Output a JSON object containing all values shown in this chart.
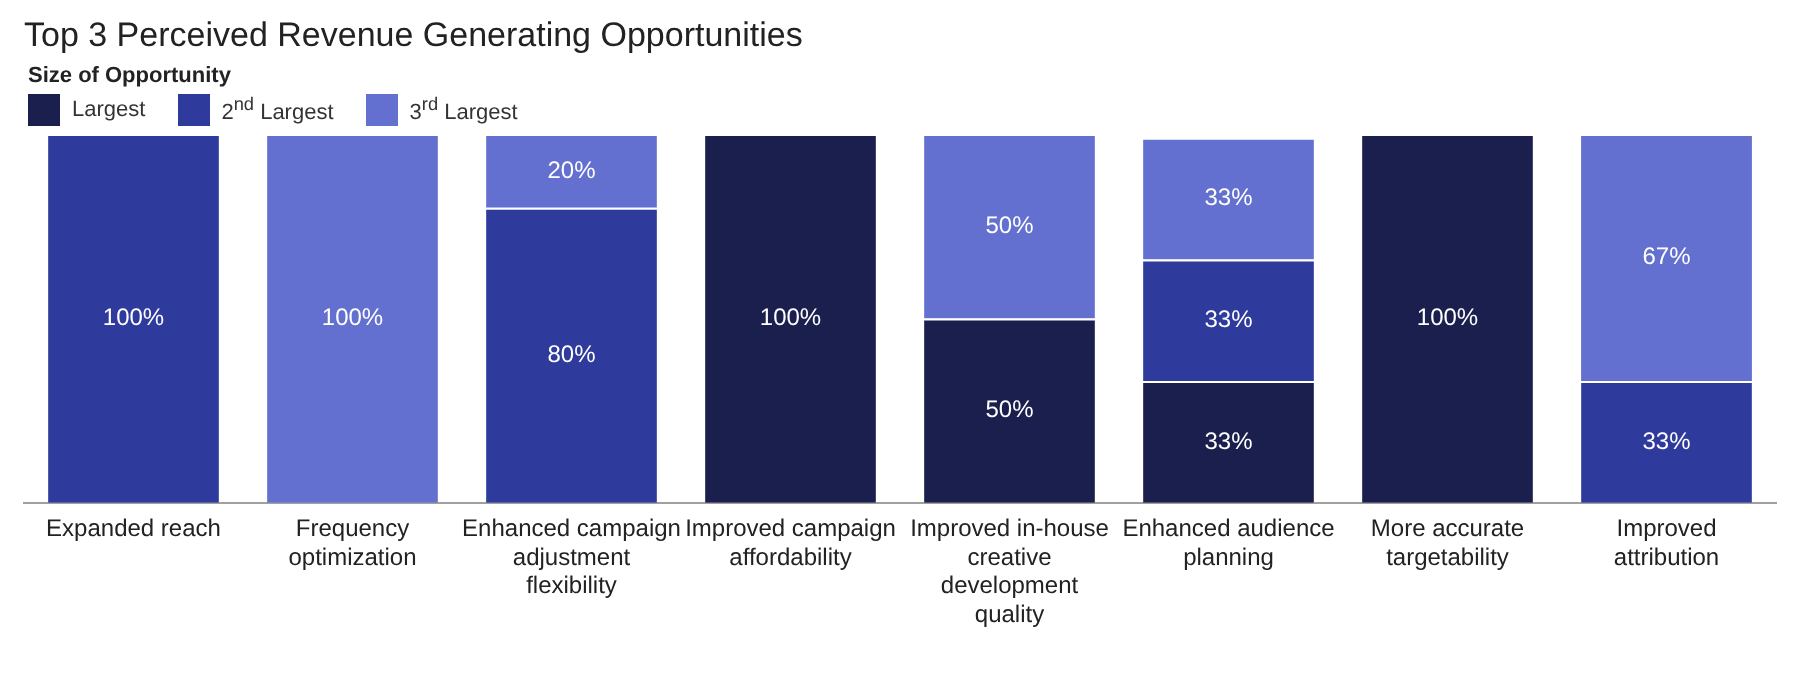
{
  "chart_data": {
    "type": "bar",
    "title": "Top 3 Perceived Revenue Generating Opportunities",
    "legend_title": "Size of Opportunity",
    "legend": "top left",
    "stacked": true,
    "tick_labels": "x",
    "grid": false,
    "categories": [
      "Expanded reach",
      "Frequency optimization",
      "Enhanced campaign adjustment flexibility",
      "Improved campaign affordability",
      "Improved in-house creative development quality",
      "Enhanced audience planning",
      "More accurate targetability",
      "Improved attribution"
    ],
    "series": [
      {
        "name": "Largest",
        "color": "#1b1f4e",
        "values": [
          0,
          0,
          0,
          100,
          50,
          33,
          100,
          0
        ],
        "value_labels": [
          null,
          null,
          null,
          "100%",
          "50%",
          "33%",
          "100%",
          null
        ]
      },
      {
        "name": "2$^{nd}$ Largest",
        "color": "#2e3a9c",
        "values": [
          100,
          0,
          80,
          0,
          0,
          33,
          0,
          33
        ],
        "value_labels": [
          "100%",
          null,
          "80%",
          null,
          null,
          "33%",
          null,
          "33%"
        ]
      },
      {
        "name": "3$^{rd}$ Largest",
        "color": "#6470cf",
        "values": [
          0,
          100,
          20,
          0,
          50,
          33,
          0,
          67
        ],
        "value_labels": [
          null,
          "100%",
          "20%",
          null,
          "50%",
          "33%",
          null,
          "67%"
        ]
      }
    ]
  }
}
